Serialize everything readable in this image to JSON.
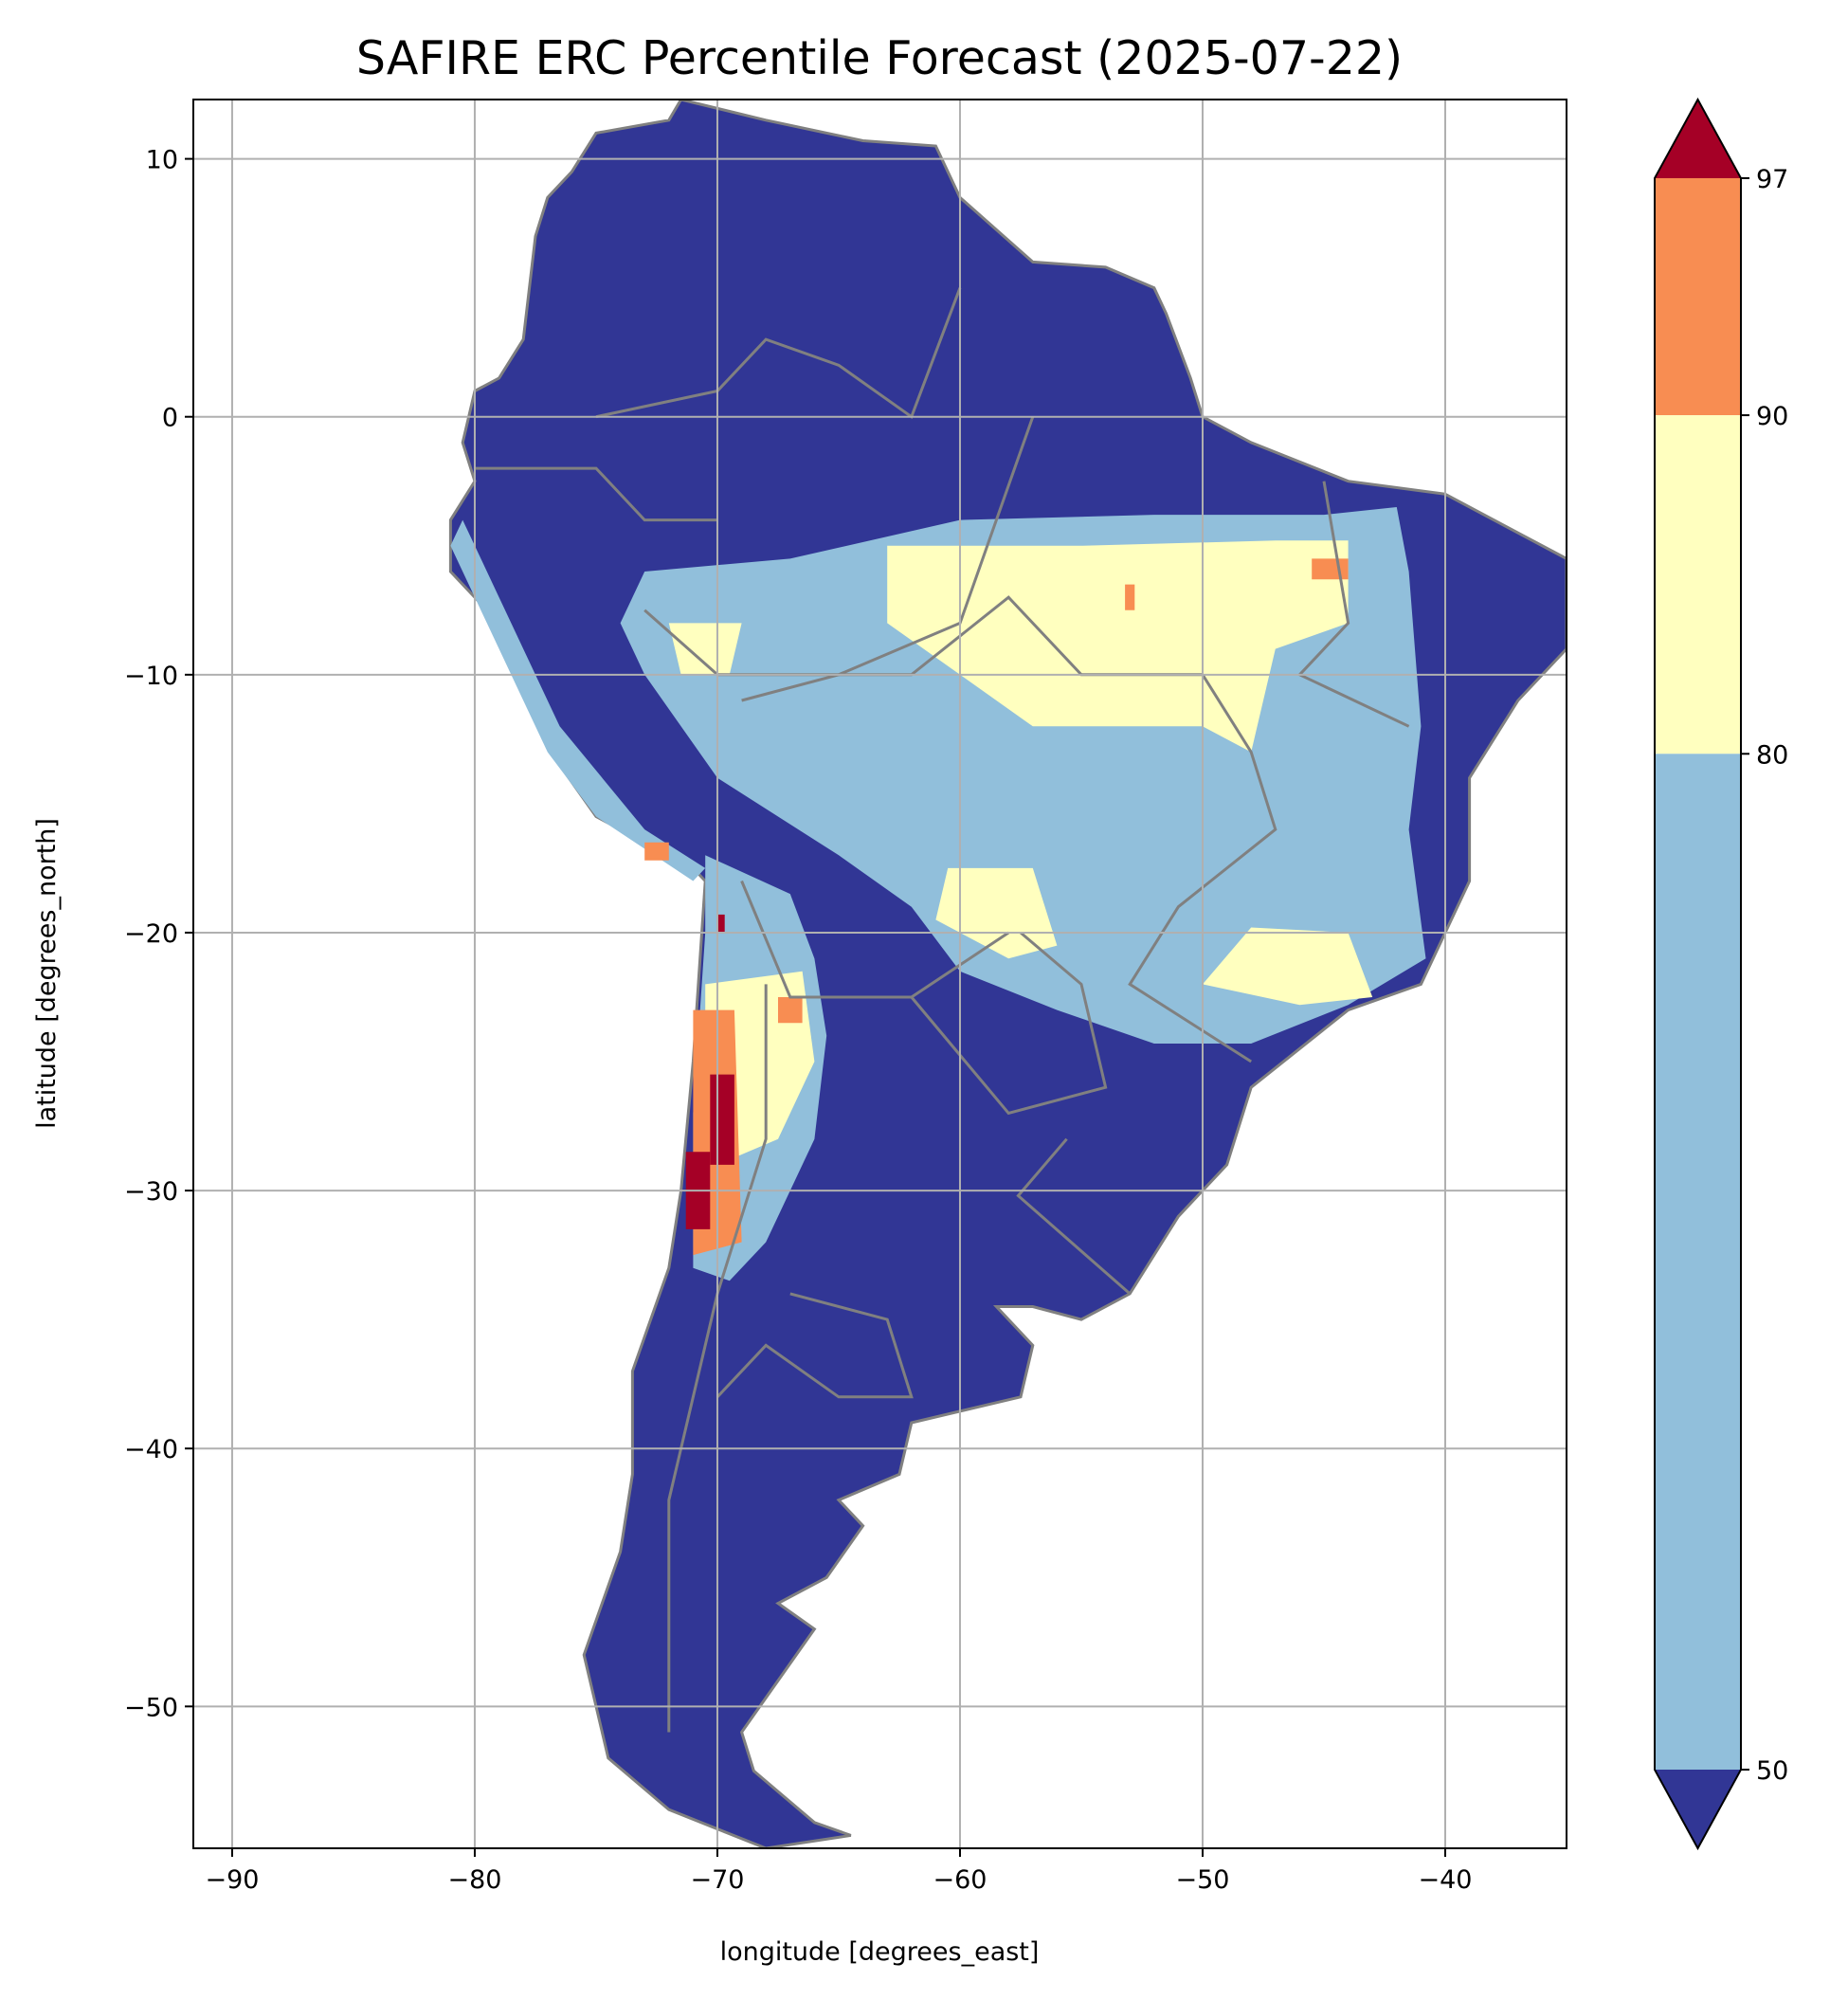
{
  "chart_data": {
    "type": "heatmap",
    "title": "SAFIRE ERC Percentile Forecast (2025-07-22)",
    "xlabel": "longitude [degrees_east]",
    "ylabel": "latitude [degrees_north]",
    "xlim": [
      -91.6,
      -35.0
    ],
    "ylim": [
      -55.5,
      12.3
    ],
    "xticks": [
      -90,
      -80,
      -70,
      -60,
      -50,
      -40
    ],
    "xtick_labels": [
      "−90",
      "−80",
      "−70",
      "−60",
      "−50",
      "−40"
    ],
    "yticks": [
      10,
      0,
      -10,
      -20,
      -30,
      -40,
      -50
    ],
    "ytick_labels": [
      "10",
      "0",
      "−10",
      "−20",
      "−30",
      "−40",
      "−50"
    ],
    "grid": true,
    "colorbar": {
      "boundaries": [
        50,
        80,
        90,
        97
      ],
      "tick_labels": [
        "50",
        "80",
        "90",
        "97"
      ],
      "extend": "both",
      "colors": {
        "below_50": "#313695",
        "50_80": "#91bfdb",
        "80_90": "#ffffbf",
        "90_97": "#f88d52",
        "above_97": "#a50026"
      }
    },
    "border_color": "#808080"
  }
}
